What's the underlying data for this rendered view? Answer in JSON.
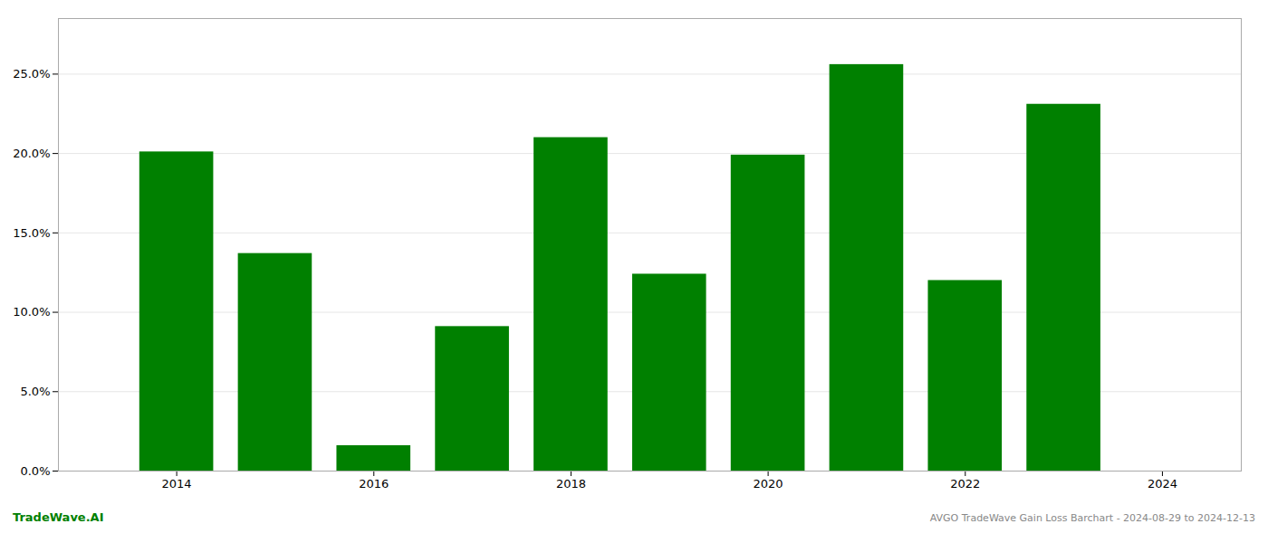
{
  "chart_data": {
    "type": "bar",
    "title": "AVGO TradeWave Gain Loss Barchart - 2024-08-29 to 2024-12-13",
    "annotations": [
      {
        "text": "TradeWave.AI",
        "color": "#008000"
      }
    ],
    "x": [
      2014,
      2015,
      2016,
      2017,
      2018,
      2019,
      2020,
      2021,
      2022,
      2023
    ],
    "values": [
      0.201,
      0.137,
      0.016,
      0.091,
      0.21,
      0.124,
      0.199,
      0.256,
      0.12,
      0.231
    ],
    "color": "#008000",
    "xlim": [
      2012.8,
      2024.8
    ],
    "xticks": [
      2014,
      2016,
      2018,
      2020,
      2022,
      2024
    ],
    "ylim": [
      0,
      0.285
    ],
    "yticks": [
      {
        "value": 0.0,
        "label": "0.0%"
      },
      {
        "value": 0.05,
        "label": "5.0%"
      },
      {
        "value": 0.1,
        "label": "10.0%"
      },
      {
        "value": 0.15,
        "label": "15.0%"
      },
      {
        "value": 0.2,
        "label": "20.0%"
      },
      {
        "value": 0.25,
        "label": "25.0%"
      }
    ],
    "grid": true
  }
}
